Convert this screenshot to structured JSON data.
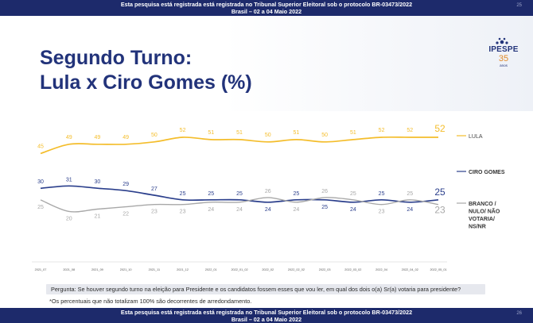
{
  "header": {
    "line1": "Esta pesquisa está registrada está registrada no Tribunal Superior Eleitoral sob o protocolo BR-03473/2022",
    "line2": "Brasil – 02 a 04 Maio 2022",
    "page": "25"
  },
  "footer": {
    "line1": "Esta pesquisa está registrada está registrada no Tribunal Superior Eleitoral sob o protocolo BR-03473/2022",
    "line2": "Brasil – 02 a 04 Maio 2022",
    "page": "26"
  },
  "title": {
    "line1": "Segundo Turno:",
    "line2": "Lula x Ciro Gomes (%)"
  },
  "logo": {
    "name": "IPESPE",
    "years": "35",
    "anos": "anos"
  },
  "colors": {
    "navy": "#1d2a6b",
    "title": "#22337a",
    "lula": "#f4bd2b",
    "ciro": "#2b3f8c",
    "branco": "#a8a8a8"
  },
  "notes": {
    "question": "Pergunta:  Se houver segundo turno na eleição para Presidente e os candidatos fossem esses que vou ler, em qual dos dois o(a) Sr(a) votaria para presidente?",
    "percent": "*Os percentuais que não totalizam 100% são decorrentes de arredondamento."
  },
  "chart_data": {
    "type": "line",
    "categories": [
      "2021_07",
      "2021_08",
      "2021_09",
      "2021_10",
      "2021_11",
      "2021_12",
      "2022_01",
      "2022_01_02",
      "2022_02",
      "2022_02_02",
      "2022_03",
      "2022_03_02",
      "2022_04",
      "2022_04_02",
      "2022_05_01"
    ],
    "series": [
      {
        "name": "LULA",
        "color": "#f4bd2b",
        "values": [
          45,
          49,
          49,
          49,
          50,
          52,
          51,
          51,
          50,
          51,
          50,
          51,
          52,
          52,
          52
        ]
      },
      {
        "name": "CIRO GOMES",
        "color": "#2b3f8c",
        "values": [
          30,
          31,
          30,
          29,
          27,
          25,
          25,
          25,
          24,
          25,
          25,
          24,
          25,
          24,
          25
        ]
      },
      {
        "name": "BRANCO / NULO/ NÃO VOTARIA/ NS/NR",
        "color": "#a8a8a8",
        "values": [
          25,
          20,
          21,
          22,
          23,
          23,
          24,
          24,
          26,
          24,
          26,
          25,
          23,
          25,
          23
        ]
      }
    ],
    "legend_labels": {
      "lula": "LULA",
      "ciro": "CIRO GOMES",
      "branco": [
        "BRANCO /",
        "NULO/ NÃO",
        "VOTARIA/",
        "NS/NR"
      ]
    },
    "grid": false,
    "legend": "right"
  }
}
